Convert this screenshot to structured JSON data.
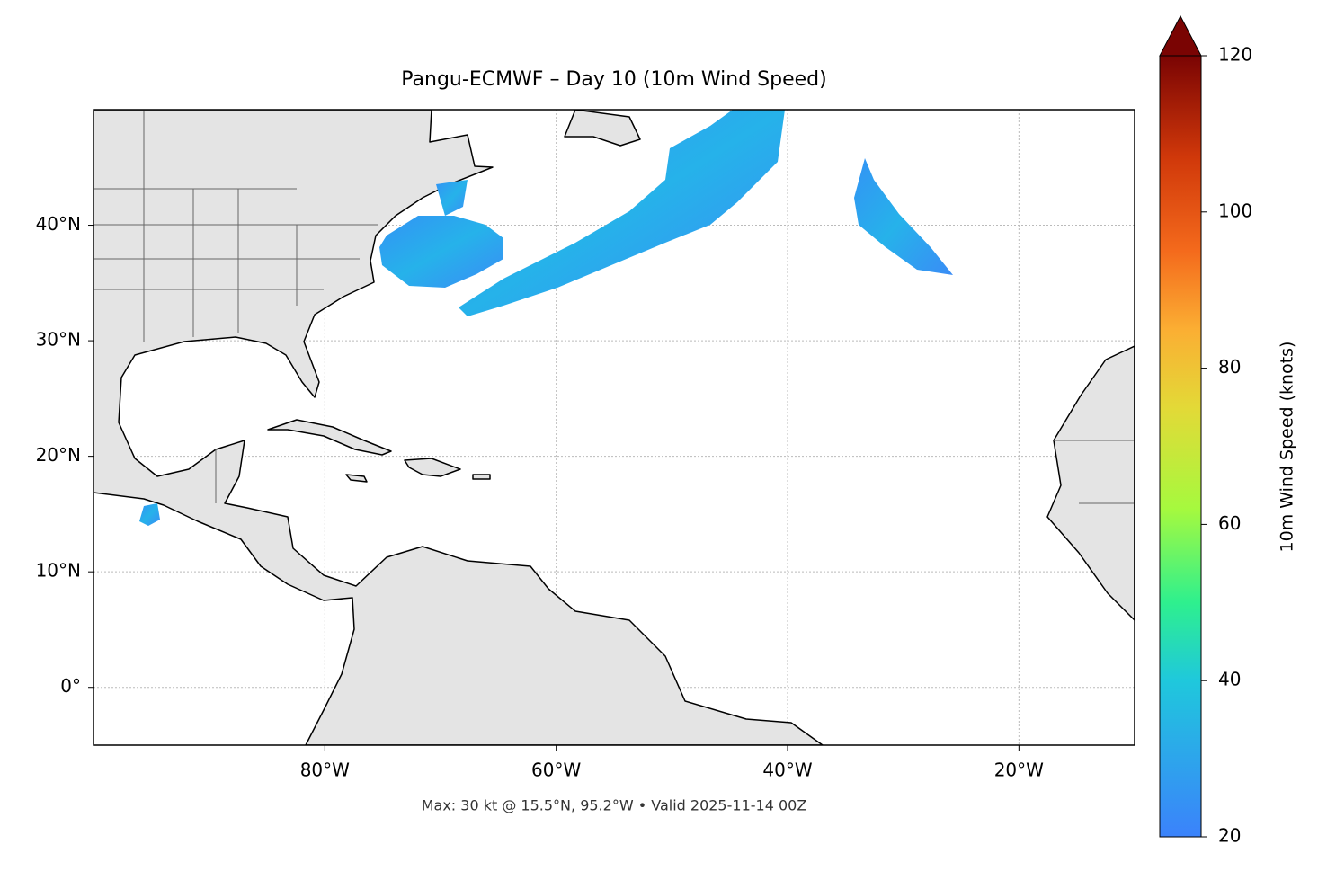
{
  "map": {
    "title": "Pangu-ECMWF – Day 10 (10m Wind Speed)",
    "footer": "Max: 30 kt @ 15.5°N, 95.2°W • Valid 2025-11-14 00Z",
    "xlim": [
      -100,
      -10
    ],
    "ylim": [
      -5,
      50
    ],
    "xticks": [
      {
        "value": -80,
        "label": "80°W"
      },
      {
        "value": -60,
        "label": "60°W"
      },
      {
        "value": -40,
        "label": "40°W"
      },
      {
        "value": -20,
        "label": "20°W"
      }
    ],
    "yticks": [
      {
        "value": 0,
        "label": "0°"
      },
      {
        "value": 10,
        "label": "10°N"
      },
      {
        "value": 20,
        "label": "20°N"
      },
      {
        "value": 30,
        "label": "30°N"
      },
      {
        "value": 40,
        "label": "40°N"
      }
    ],
    "grid": true
  },
  "colorbar": {
    "label": "10m Wind Speed (knots)",
    "lim": [
      20,
      120
    ],
    "ticks": [
      20,
      40,
      60,
      80,
      100,
      120
    ]
  }
}
